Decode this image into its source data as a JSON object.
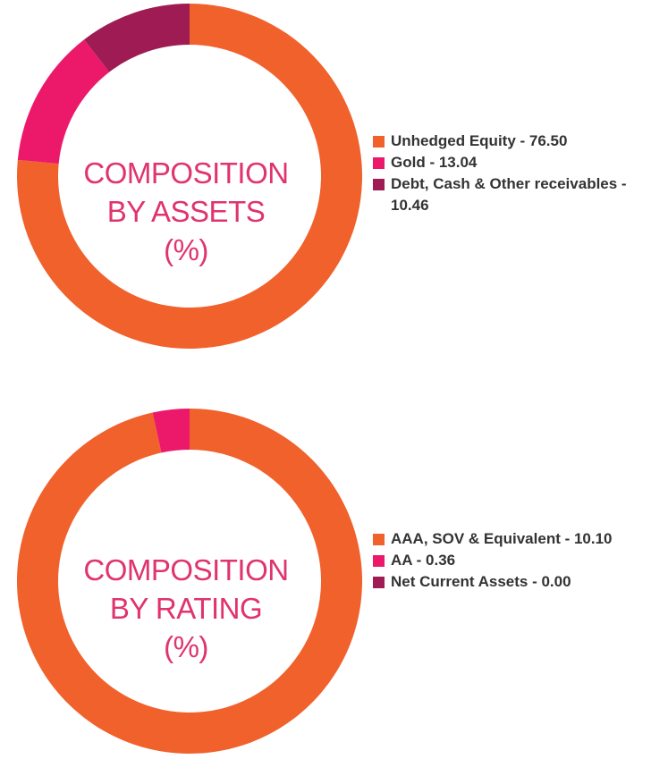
{
  "chart_data": [
    {
      "type": "pie",
      "title": "COMPOSITION BY ASSETS (%)",
      "title_lines": [
        "COMPOSITION",
        "BY ASSETS",
        "(%)"
      ],
      "categories": [
        "Unhedged Equity",
        "Gold",
        "Debt, Cash & Other receivables"
      ],
      "values": [
        76.5,
        13.04,
        10.46
      ],
      "legend_labels": [
        "Unhedged Equity - 76.50",
        "Gold - 13.04",
        "Debt, Cash & Other receivables - 10.46"
      ],
      "colors": [
        "#f0612c",
        "#ec196b",
        "#9e1b54"
      ],
      "legend_position": "right"
    },
    {
      "type": "pie",
      "title": "COMPOSITION BY RATING (%)",
      "title_lines": [
        "COMPOSITION",
        "BY RATING",
        "(%)"
      ],
      "categories": [
        "AAA, SOV & Equivalent",
        "AA",
        "Net Current Assets"
      ],
      "values": [
        10.1,
        0.36,
        0.0
      ],
      "legend_labels": [
        "AAA, SOV & Equivalent - 10.10",
        "AA - 0.36",
        "Net Current Assets - 0.00"
      ],
      "colors": [
        "#f0612c",
        "#ec196b",
        "#9e1b54"
      ],
      "legend_position": "right"
    }
  ]
}
